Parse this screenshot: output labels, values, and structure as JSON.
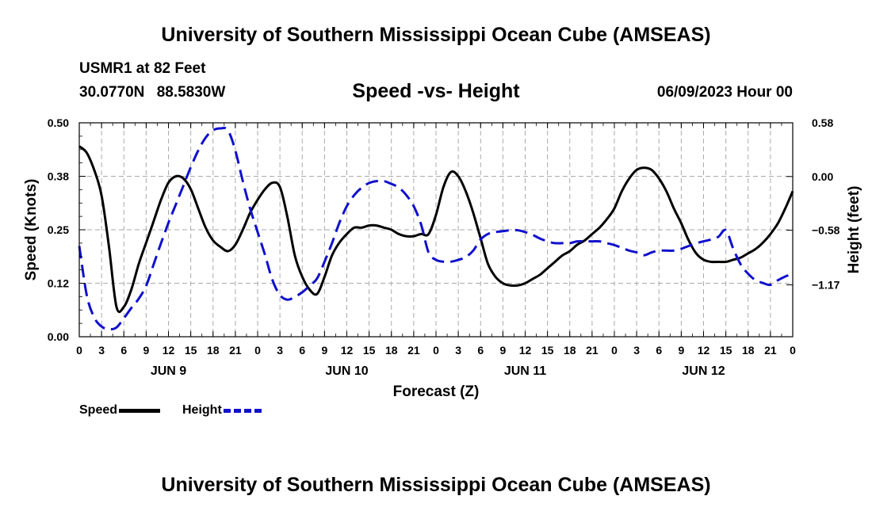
{
  "header": {
    "title": "University of Southern Mississippi Ocean Cube (AMSEAS)",
    "station": "USMR1 at 82 Feet",
    "lat": "30.0770N",
    "lon": "88.5830W",
    "subtitle": "Speed -vs- Height",
    "datetime": "06/09/2023 Hour 00"
  },
  "footer": {
    "title": "University of Southern Mississippi Ocean Cube (AMSEAS)"
  },
  "legend": {
    "speed_label": "Speed",
    "height_label": "Height"
  },
  "colors": {
    "speed": "#000000",
    "height": "#1010cc",
    "grid": "#aaaaaa"
  },
  "chart_data": {
    "type": "line",
    "title": "Speed -vs- Height",
    "xlabel": "Forecast (Z)",
    "ylabel_left": "Speed (Knots)",
    "ylabel_right": "Height (feet)",
    "xlim": [
      0,
      96
    ],
    "ylim_left": [
      0,
      0.5
    ],
    "ylim_right": [
      -1.73,
      0.58
    ],
    "x_ticks": [
      0,
      3,
      6,
      9,
      12,
      15,
      18,
      21,
      24,
      27,
      30,
      33,
      36,
      39,
      42,
      45,
      48,
      51,
      54,
      57,
      60,
      63,
      66,
      69,
      72,
      75,
      78,
      81,
      84,
      87,
      90,
      93,
      96
    ],
    "x_tick_labels": [
      "0",
      "3",
      "6",
      "9",
      "12",
      "15",
      "18",
      "21",
      "0",
      "3",
      "6",
      "9",
      "12",
      "15",
      "18",
      "21",
      "0",
      "3",
      "6",
      "9",
      "12",
      "15",
      "18",
      "21",
      "0",
      "3",
      "6",
      "9",
      "12",
      "15",
      "18",
      "21",
      "0"
    ],
    "day_labels": [
      {
        "x": 12,
        "label": "JUN 9"
      },
      {
        "x": 36,
        "label": "JUN 10"
      },
      {
        "x": 60,
        "label": "JUN 11"
      },
      {
        "x": 84,
        "label": "JUN 12"
      }
    ],
    "y_ticks_left": [
      0.0,
      0.125,
      0.25,
      0.375,
      0.5
    ],
    "y_tick_labels_left": [
      "0.00",
      "0.12",
      "0.25",
      "0.38",
      "0.50"
    ],
    "y_ticks_right": [
      0.58,
      0.0,
      -0.58,
      -1.17
    ],
    "y_tick_labels_right": [
      "0.58",
      "0.00",
      "−0.58",
      "−1.17"
    ],
    "grid": true,
    "series": [
      {
        "name": "Speed",
        "axis": "left",
        "style": "solid",
        "x": [
          0,
          1,
          2,
          3,
          4,
          5,
          6,
          7,
          8,
          9,
          10,
          11,
          12,
          13,
          14,
          15,
          16,
          17,
          18,
          19,
          20,
          21,
          22,
          23,
          24,
          25,
          26,
          27,
          28,
          29,
          30,
          31,
          32,
          33,
          34,
          35,
          36,
          37,
          38,
          39,
          40,
          41,
          42,
          43,
          44,
          45,
          46,
          47,
          48,
          49,
          50,
          51,
          52,
          53,
          54,
          55,
          56,
          57,
          58,
          59,
          60,
          61,
          62,
          63,
          64,
          65,
          66,
          67,
          68,
          69,
          70,
          71,
          72,
          73,
          74,
          75,
          76,
          77,
          78,
          79,
          80,
          81,
          82,
          83,
          84,
          85,
          86,
          87,
          88,
          89,
          90,
          91,
          92,
          93,
          94,
          95,
          96
        ],
        "values": [
          0.445,
          0.43,
          0.39,
          0.33,
          0.21,
          0.07,
          0.07,
          0.11,
          0.17,
          0.22,
          0.27,
          0.32,
          0.36,
          0.375,
          0.37,
          0.345,
          0.3,
          0.255,
          0.225,
          0.21,
          0.2,
          0.215,
          0.25,
          0.29,
          0.32,
          0.345,
          0.36,
          0.35,
          0.28,
          0.19,
          0.14,
          0.11,
          0.1,
          0.14,
          0.19,
          0.22,
          0.24,
          0.255,
          0.255,
          0.26,
          0.26,
          0.255,
          0.25,
          0.24,
          0.235,
          0.235,
          0.24,
          0.24,
          0.285,
          0.35,
          0.385,
          0.375,
          0.34,
          0.29,
          0.23,
          0.17,
          0.14,
          0.125,
          0.12,
          0.12,
          0.125,
          0.135,
          0.145,
          0.16,
          0.175,
          0.19,
          0.2,
          0.215,
          0.225,
          0.24,
          0.255,
          0.275,
          0.3,
          0.34,
          0.37,
          0.39,
          0.395,
          0.39,
          0.37,
          0.34,
          0.3,
          0.265,
          0.225,
          0.195,
          0.18,
          0.175,
          0.175,
          0.175,
          0.18,
          0.185,
          0.195,
          0.205,
          0.22,
          0.24,
          0.265,
          0.3,
          0.34
        ]
      },
      {
        "name": "Height",
        "axis": "right",
        "style": "dashed",
        "x": [
          0,
          1,
          2,
          3,
          4,
          5,
          6,
          7,
          8,
          9,
          10,
          11,
          12,
          13,
          14,
          15,
          16,
          17,
          18,
          19,
          20,
          21,
          22,
          23,
          24,
          25,
          26,
          27,
          28,
          29,
          30,
          31,
          32,
          33,
          34,
          35,
          36,
          37,
          38,
          39,
          40,
          41,
          42,
          43,
          44,
          45,
          46,
          47,
          48,
          49,
          50,
          51,
          52,
          53,
          54,
          55,
          56,
          57,
          58,
          59,
          60,
          61,
          62,
          63,
          64,
          65,
          66,
          67,
          68,
          69,
          70,
          71,
          72,
          73,
          74,
          75,
          76,
          77,
          78,
          79,
          80,
          81,
          82,
          83,
          84,
          85,
          86,
          87,
          88,
          89,
          90,
          91,
          92,
          93,
          94,
          95,
          96
        ],
        "values": [
          -0.75,
          -1.28,
          -1.52,
          -1.62,
          -1.65,
          -1.63,
          -1.53,
          -1.42,
          -1.32,
          -1.18,
          -0.95,
          -0.72,
          -0.5,
          -0.3,
          -0.1,
          0.1,
          0.28,
          0.42,
          0.5,
          0.52,
          0.5,
          0.28,
          -0.05,
          -0.35,
          -0.6,
          -0.85,
          -1.12,
          -1.28,
          -1.33,
          -1.3,
          -1.25,
          -1.18,
          -1.1,
          -0.92,
          -0.72,
          -0.5,
          -0.32,
          -0.2,
          -0.12,
          -0.07,
          -0.05,
          -0.05,
          -0.08,
          -0.12,
          -0.2,
          -0.32,
          -0.52,
          -0.82,
          -0.9,
          -0.92,
          -0.92,
          -0.9,
          -0.87,
          -0.8,
          -0.68,
          -0.62,
          -0.6,
          -0.59,
          -0.58,
          -0.58,
          -0.6,
          -0.63,
          -0.67,
          -0.7,
          -0.72,
          -0.72,
          -0.72,
          -0.7,
          -0.7,
          -0.7,
          -0.7,
          -0.72,
          -0.74,
          -0.77,
          -0.8,
          -0.82,
          -0.85,
          -0.82,
          -0.8,
          -0.8,
          -0.8,
          -0.78,
          -0.75,
          -0.72,
          -0.7,
          -0.68,
          -0.65,
          -0.58,
          -0.78,
          -0.95,
          -1.05,
          -1.12,
          -1.15,
          -1.17,
          -1.12,
          -1.08,
          -1.05
        ]
      }
    ]
  }
}
